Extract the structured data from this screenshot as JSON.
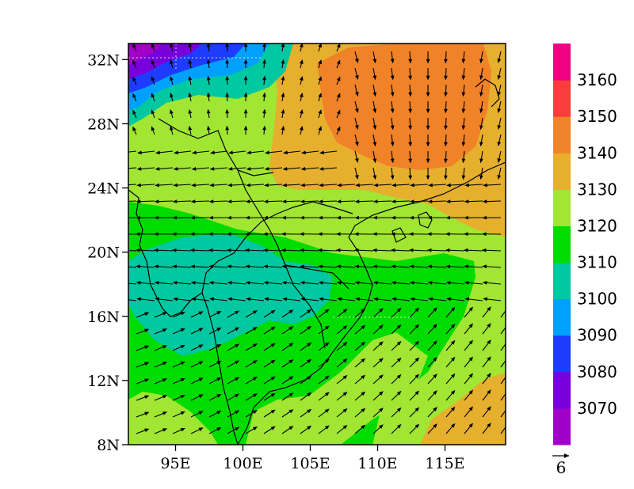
{
  "map": {
    "x_ticks": [
      "95E",
      "100E",
      "105E",
      "110E",
      "115E"
    ],
    "x_tick_values": [
      95,
      100,
      105,
      110,
      115
    ],
    "y_ticks": [
      "8N",
      "12N",
      "16N",
      "20N",
      "24N",
      "28N",
      "32N"
    ],
    "y_tick_values": [
      8,
      12,
      16,
      20,
      24,
      28,
      32
    ],
    "lon_range": [
      91.5,
      119.5
    ],
    "lat_range": [
      8,
      33
    ],
    "field": "geopotential height shaded with wind vectors",
    "vector_reference": {
      "label": "6",
      "value": 6
    }
  },
  "colorbar": {
    "labels": [
      "3070",
      "3080",
      "3090",
      "3100",
      "3110",
      "3120",
      "3130",
      "3140",
      "3150",
      "3160"
    ],
    "levels": [
      3070,
      3080,
      3090,
      3100,
      3110,
      3120,
      3130,
      3140,
      3150,
      3160
    ],
    "colors": [
      "#a000c8",
      "#7800dc",
      "#1e3cff",
      "#00a0ff",
      "#00c8a0",
      "#00dc00",
      "#a0e632",
      "#e6af2d",
      "#f08228",
      "#fa3c3c",
      "#f00082"
    ]
  }
}
